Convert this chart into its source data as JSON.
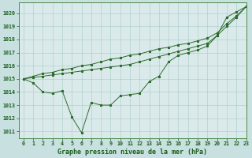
{
  "title": "Graphe pression niveau de la mer (hPa)",
  "bg_color": "#c8e0e0",
  "plot_bg_color": "#daeaea",
  "line_color": "#2d6b2d",
  "xlim": [
    -0.5,
    23
  ],
  "ylim": [
    1010.5,
    1020.8
  ],
  "yticks": [
    1011,
    1012,
    1013,
    1014,
    1015,
    1016,
    1017,
    1018,
    1019,
    1020
  ],
  "xticks": [
    0,
    1,
    2,
    3,
    4,
    5,
    6,
    7,
    8,
    9,
    10,
    11,
    12,
    13,
    14,
    15,
    16,
    17,
    18,
    19,
    20,
    21,
    22,
    23
  ],
  "series_main": [
    1015.0,
    1014.7,
    1014.0,
    1013.9,
    1014.1,
    1012.1,
    1010.9,
    1013.2,
    1013.0,
    1013.0,
    1013.7,
    1013.8,
    1013.9,
    1014.8,
    1015.2,
    1016.3,
    1016.8,
    1017.0,
    1017.2,
    1017.5,
    1018.3,
    1019.7,
    1020.1,
    1020.5
  ],
  "series_upper1": [
    1015.0,
    1015.2,
    1015.4,
    1015.5,
    1015.7,
    1015.8,
    1016.0,
    1016.1,
    1016.3,
    1016.5,
    1016.6,
    1016.8,
    1016.9,
    1017.1,
    1017.3,
    1017.4,
    1017.6,
    1017.7,
    1017.9,
    1018.1,
    1018.5,
    1019.2,
    1019.8,
    1020.5
  ],
  "series_upper2": [
    1015.0,
    1015.1,
    1015.2,
    1015.3,
    1015.4,
    1015.5,
    1015.6,
    1015.7,
    1015.8,
    1015.9,
    1016.0,
    1016.1,
    1016.3,
    1016.5,
    1016.7,
    1016.9,
    1017.1,
    1017.3,
    1017.5,
    1017.7,
    1018.3,
    1019.0,
    1019.7,
    1020.5
  ]
}
